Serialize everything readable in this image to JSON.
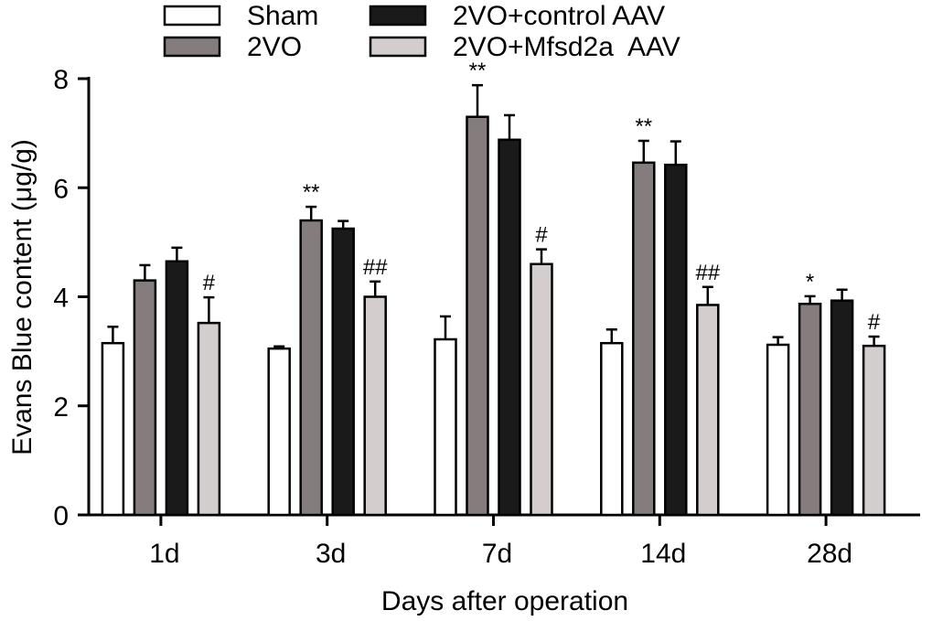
{
  "chart_data": {
    "type": "bar",
    "title": "",
    "xlabel": "Days after operation",
    "ylabel": "Evans Blue content (μg/g)",
    "categories": [
      "1d",
      "3d",
      "7d",
      "14d",
      "28d"
    ],
    "ylim": [
      0,
      8
    ],
    "yticks": [
      0,
      2,
      4,
      6,
      8
    ],
    "legend_position": "top",
    "series": [
      {
        "name": "Sham",
        "color": "#ffffff",
        "values": [
          3.15,
          3.05,
          3.22,
          3.15,
          3.12
        ],
        "errors": [
          0.3,
          0.04,
          0.42,
          0.25,
          0.14
        ],
        "annotations": [
          "",
          "",
          "",
          "",
          ""
        ]
      },
      {
        "name": "2VO",
        "color": "#857d7d",
        "values": [
          4.3,
          5.4,
          7.3,
          6.46,
          3.87
        ],
        "errors": [
          0.28,
          0.25,
          0.58,
          0.4,
          0.14
        ],
        "annotations": [
          "",
          "**",
          "**",
          "**",
          "*"
        ]
      },
      {
        "name": "2VO+control AAV",
        "color": "#1a1a1a",
        "values": [
          4.65,
          5.25,
          6.88,
          6.42,
          3.93
        ],
        "errors": [
          0.25,
          0.14,
          0.45,
          0.43,
          0.2
        ],
        "annotations": [
          "",
          "",
          "",
          "",
          ""
        ]
      },
      {
        "name": "2VO+Mfsd2a  AAV",
        "color": "#d3cdcd",
        "values": [
          3.52,
          4.0,
          4.6,
          3.85,
          3.1
        ],
        "errors": [
          0.47,
          0.28,
          0.27,
          0.33,
          0.17
        ],
        "annotations": [
          "#",
          "##",
          "#",
          "##",
          "#"
        ]
      }
    ]
  }
}
